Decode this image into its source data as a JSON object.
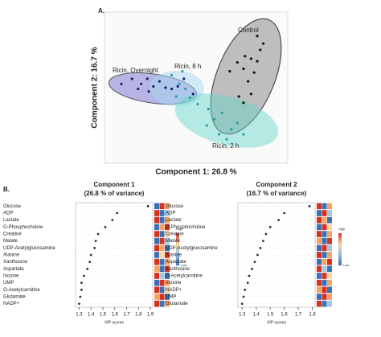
{
  "chart_data": [
    {
      "type": "scatter",
      "panel_label": "A.",
      "xlabel": "Component 1: 26.8 %",
      "ylabel": "Component 2: 16.7 %",
      "xlim": [
        -6,
        6
      ],
      "ylim": [
        -6,
        6
      ],
      "series": [
        {
          "name": "Control",
          "color": "#8c8c8c",
          "x": [
            2.2,
            2.7,
            3.2,
            3.6,
            4.0,
            3.1,
            3.8,
            4.4,
            4.0,
            4.2,
            2.8,
            3.1,
            3.6,
            3.4
          ],
          "values": [
            1.3,
            2.0,
            2.5,
            2.3,
            2.1,
            1.5,
            1.2,
            3.5,
            4.1,
            3.0,
            -0.7,
            -1.2,
            -0.5,
            0.5
          ]
        },
        {
          "name": "Ricin, Overnight",
          "color": "#8a86d8",
          "x": [
            -4.9,
            -4.2,
            -3.6,
            -3.2,
            -2.8,
            -2.4,
            -2.0,
            -1.6,
            -1.2,
            -3.1,
            -3.8,
            -0.8,
            -0.2
          ],
          "values": [
            0.3,
            0.7,
            0.3,
            0.7,
            0.1,
            0.5,
            0.0,
            -0.1,
            0.1,
            -0.3,
            -0.1,
            0.7,
            -0.5
          ]
        },
        {
          "name": "Ricin, 8 h",
          "color": "#a8d8f0",
          "x": [
            -1.6,
            -1.1,
            -0.7,
            -1.3,
            -0.4,
            -0.9
          ],
          "values": [
            1.0,
            0.3,
            -0.1,
            -0.7,
            -0.8,
            1.3
          ]
        },
        {
          "name": "Ricin, 2 h",
          "color": "#5fd6c8",
          "x": [
            0.8,
            1.2,
            1.7,
            2.3,
            2.7,
            3.1,
            1.5,
            0.7,
            2.0,
            0.1
          ],
          "values": [
            -1.7,
            -2.5,
            -2.0,
            -3.3,
            -2.8,
            -3.7,
            -3.7,
            -3.0,
            -4.1,
            -1.3
          ]
        }
      ]
    },
    {
      "type": "dot",
      "panel_label": "B.",
      "title": "Component 1",
      "subtitle": "(26.8 % of variance)",
      "xlabel": "VIP scores",
      "categories": [
        "Glucose",
        "ADP",
        "Lactate",
        "O-Phosphocholine",
        "Creatine",
        "Malate",
        "UDP-Acetylglucosamine",
        "Alanine",
        "Xanthosine",
        "Aspartate",
        "Inosine",
        "UMP",
        "O-Acetylcarnitine",
        "Glutamate",
        "NADP+"
      ],
      "values": [
        1.88,
        1.62,
        1.58,
        1.52,
        1.46,
        1.44,
        1.43,
        1.4,
        1.39,
        1.37,
        1.34,
        1.32,
        1.32,
        1.31,
        1.3
      ],
      "xlim": [
        1.27,
        1.92
      ],
      "xticks": [
        1.3,
        1.4,
        1.5,
        1.6,
        1.7,
        1.8,
        1.9
      ],
      "color": "#333333",
      "heatmap": [
        [
          "#3b6fb6",
          "#d7301f",
          "#f4a460"
        ],
        [
          "#d7301f",
          "#3b6fb6",
          "#9ecae1"
        ],
        [
          "#d7301f",
          "#3b6fb6",
          "#f4a460"
        ],
        [
          "#3b6fb6",
          "#f4a460",
          "#d7301f"
        ],
        [
          "#d7301f",
          "#3b6fb6",
          "#fdd49e"
        ],
        [
          "#3b6fb6",
          "#d7301f",
          "#9ecae1"
        ],
        [
          "#d7301f",
          "#f4a460",
          "#3b6fb6"
        ],
        [
          "#3b6fb6",
          "#fdd49e",
          "#d7301f"
        ],
        [
          "#d7301f",
          "#3b6fb6",
          "#f4a460"
        ],
        [
          "#f4a460",
          "#3b6fb6",
          "#d7301f"
        ],
        [
          "#d7301f",
          "#9ecae1",
          "#3b6fb6"
        ],
        [
          "#3b6fb6",
          "#d7301f",
          "#f4a460"
        ],
        [
          "#d7301f",
          "#3b6fb6",
          "#fdd49e"
        ],
        [
          "#f4a460",
          "#d7301f",
          "#3b6fb6"
        ],
        [
          "#d7301f",
          "#3b6fb6",
          "#f4a460"
        ]
      ],
      "colorbar_labels": [
        "High",
        "Low"
      ]
    },
    {
      "type": "dot",
      "title": "Component 2",
      "subtitle": "(16.7 % of variance)",
      "xlabel": "VIP scores",
      "categories": [
        "Glucose",
        "ADP",
        "Lactate",
        "O-Phosphocholine",
        "Creatine",
        "Malate",
        "UDP-Acetylglucosamine",
        "Alanine",
        "Aspartate",
        "Xanthosine",
        "O-Acetylcarnitine",
        "Inosine",
        "NADP+",
        "UMP",
        "Glutamate"
      ],
      "values": [
        1.78,
        1.6,
        1.56,
        1.5,
        1.47,
        1.45,
        1.43,
        1.41,
        1.39,
        1.37,
        1.35,
        1.34,
        1.32,
        1.31,
        1.3
      ],
      "xlim": [
        1.27,
        1.82
      ],
      "xticks": [
        1.3,
        1.4,
        1.5,
        1.6,
        1.7,
        1.8
      ],
      "color": "#333333",
      "heatmap": [
        [
          "#d7301f",
          "#3b6fb6",
          "#f4a460"
        ],
        [
          "#3b6fb6",
          "#d7301f",
          "#9ecae1"
        ],
        [
          "#d7301f",
          "#f4a460",
          "#3b6fb6"
        ],
        [
          "#3b6fb6",
          "#d7301f",
          "#fdd49e"
        ],
        [
          "#d7301f",
          "#3b6fb6",
          "#f4a460"
        ],
        [
          "#f4a460",
          "#3b6fb6",
          "#d7301f"
        ],
        [
          "#3b6fb6",
          "#d7301f",
          "#9ecae1"
        ],
        [
          "#d7301f",
          "#3b6fb6",
          "#f4a460"
        ],
        [
          "#3b6fb6",
          "#f4a460",
          "#d7301f"
        ],
        [
          "#d7301f",
          "#9ecae1",
          "#3b6fb6"
        ],
        [
          "#3b6fb6",
          "#d7301f",
          "#fdd49e"
        ],
        [
          "#d7301f",
          "#3b6fb6",
          "#f4a460"
        ],
        [
          "#f4a460",
          "#d7301f",
          "#3b6fb6"
        ],
        [
          "#3b6fb6",
          "#d7301f",
          "#f4a460"
        ],
        [
          "#d7301f",
          "#3b6fb6",
          "#9ecae1"
        ]
      ],
      "colorbar_labels": [
        "High",
        "Low"
      ]
    }
  ]
}
